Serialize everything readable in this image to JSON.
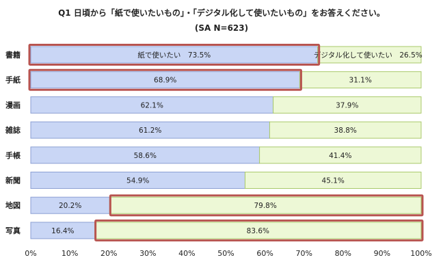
{
  "chart_data": {
    "type": "bar",
    "stacked": true,
    "orientation": "horizontal",
    "title": "Q1 日頃から「紙で使いたいもの」・「デジタル化して使いたいもの」をお答えください。",
    "subtitle": "(SA N=623)",
    "categories": [
      "書籍",
      "手紙",
      "漫画",
      "雑誌",
      "手帳",
      "新聞",
      "地図",
      "写真"
    ],
    "series": [
      {
        "name": "紙で使いたい",
        "color": "#c9d6f5",
        "values": [
          73.5,
          68.9,
          62.1,
          61.2,
          58.6,
          54.9,
          20.2,
          16.4
        ]
      },
      {
        "name": "デジタル化して使いたい",
        "color": "#edf8d6",
        "values": [
          26.5,
          31.1,
          37.9,
          38.8,
          41.4,
          45.1,
          79.8,
          83.6
        ]
      }
    ],
    "bar_labels": {
      "paper": [
        "紙で使いたい　73.5%",
        "68.9%",
        "62.1%",
        "61.2%",
        "58.6%",
        "54.9%",
        "20.2%",
        "16.4%"
      ],
      "digital": [
        "デジタル化して使いたい　26.5%",
        "31.1%",
        "37.9%",
        "38.8%",
        "41.4%",
        "45.1%",
        "79.8%",
        "83.6%"
      ]
    },
    "highlighted": [
      {
        "category": "書籍",
        "series": "紙で使いたい"
      },
      {
        "category": "手紙",
        "series": "紙で使いたい"
      },
      {
        "category": "地図",
        "series": "デジタル化して使いたい"
      },
      {
        "category": "写真",
        "series": "デジタル化して使いたい"
      }
    ],
    "highlight_color": "#b85450",
    "xlim": [
      0,
      100
    ],
    "xticks": [
      "0%",
      "10%",
      "20%",
      "30%",
      "40%",
      "50%",
      "60%",
      "70%",
      "80%",
      "90%",
      "100%"
    ],
    "grid": false,
    "legend": "none"
  }
}
